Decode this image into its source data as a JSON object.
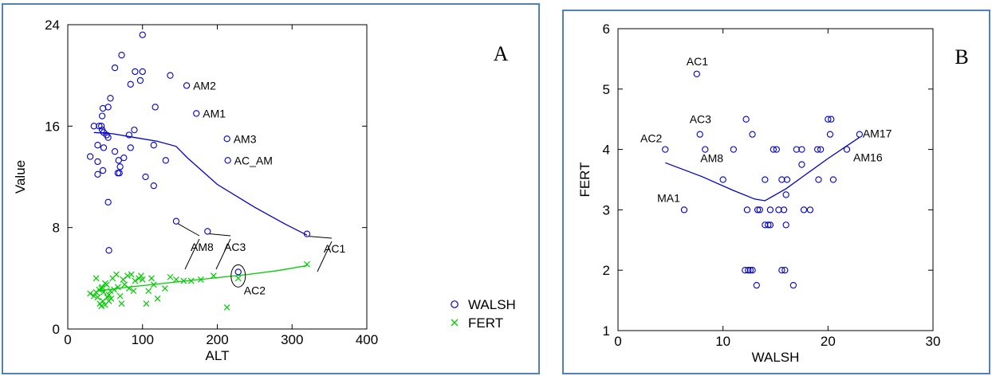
{
  "chart_data": [
    {
      "type": "scatter",
      "panel_letter": "A",
      "xlabel": "ALT",
      "ylabel": "Value",
      "xlim": [
        0,
        400
      ],
      "ylim": [
        0,
        24
      ],
      "xticks": [
        0,
        100,
        200,
        300,
        400
      ],
      "yticks": [
        0,
        8,
        16,
        24
      ],
      "grid": false,
      "legend_position": "lower-right outside",
      "series": [
        {
          "name": "WALSH",
          "marker": "circle",
          "color": "#0000cc",
          "points": [
            [
              100,
              23.2
            ],
            [
              72,
              21.6
            ],
            [
              63,
              20.6
            ],
            [
              90,
              20.3
            ],
            [
              100,
              20.3
            ],
            [
              137,
              20
            ],
            [
              84,
              19.3
            ],
            [
              97,
              19.6
            ],
            [
              159,
              19.2
            ],
            [
              54,
              17.5
            ],
            [
              47,
              17.4
            ],
            [
              117,
              17.5
            ],
            [
              172,
              17
            ],
            [
              57,
              18.2
            ],
            [
              46,
              16.8
            ],
            [
              35,
              16
            ],
            [
              42,
              16
            ],
            [
              45,
              16
            ],
            [
              46,
              15.7
            ],
            [
              48,
              15.5
            ],
            [
              52,
              15.3
            ],
            [
              54,
              15.1
            ],
            [
              89,
              15.7
            ],
            [
              82,
              15.3
            ],
            [
              213,
              15
            ],
            [
              40,
              14.5
            ],
            [
              48,
              14.3
            ],
            [
              63,
              14
            ],
            [
              84,
              14.3
            ],
            [
              75,
              13.5
            ],
            [
              115,
              14.5
            ],
            [
              68,
              13.3
            ],
            [
              30,
              13.6
            ],
            [
              40,
              13.2
            ],
            [
              70,
              12.8
            ],
            [
              214,
              13.3
            ],
            [
              47,
              12.5
            ],
            [
              40,
              12.2
            ],
            [
              67,
              12.3
            ],
            [
              69,
              12.3
            ],
            [
              131,
              13.3
            ],
            [
              104,
              12
            ],
            [
              115,
              11.3
            ],
            [
              54,
              10
            ],
            [
              55,
              6.2
            ],
            [
              145,
              8.5
            ],
            [
              187,
              7.7
            ],
            [
              228,
              4.5
            ],
            [
              320,
              7.5
            ]
          ],
          "labels": [
            {
              "text": "AM2",
              "x": 159,
              "y": 19.2
            },
            {
              "text": "AM1",
              "x": 172,
              "y": 17
            },
            {
              "text": "AM3",
              "x": 213,
              "y": 15
            },
            {
              "text": "AC_AM",
              "x": 214,
              "y": 13.3
            },
            {
              "text": "AM8",
              "x": 145,
              "y": 8.5
            },
            {
              "text": "AC3",
              "x": 187,
              "y": 7.7
            },
            {
              "text": "AC1",
              "x": 320,
              "y": 7.5
            },
            {
              "text": "AC2",
              "x": 228,
              "y": 4.5
            }
          ]
        },
        {
          "name": "FERT",
          "marker": "x",
          "color": "#00cc00",
          "points": [
            [
              30,
              2.8
            ],
            [
              35,
              2.6
            ],
            [
              38,
              2.9
            ],
            [
              40,
              2.5
            ],
            [
              42,
              3.1
            ],
            [
              43,
              2
            ],
            [
              45,
              1.8
            ],
            [
              46,
              3.3
            ],
            [
              47,
              2.2
            ],
            [
              48,
              2.9
            ],
            [
              50,
              1.9
            ],
            [
              52,
              3.5
            ],
            [
              53,
              2.5
            ],
            [
              55,
              2.7
            ],
            [
              57,
              3.0
            ],
            [
              58,
              2.4
            ],
            [
              60,
              4
            ],
            [
              62,
              3.1
            ],
            [
              65,
              4.3
            ],
            [
              67,
              3.3
            ],
            [
              70,
              2.6
            ],
            [
              72,
              2
            ],
            [
              74,
              3.9
            ],
            [
              76,
              3.5
            ],
            [
              80,
              4.2
            ],
            [
              82,
              3.2
            ],
            [
              85,
              4.3
            ],
            [
              88,
              3
            ],
            [
              90,
              3.8
            ],
            [
              95,
              4
            ],
            [
              98,
              4.2
            ],
            [
              100,
              3.9
            ],
            [
              105,
              2
            ],
            [
              108,
              3
            ],
            [
              112,
              4
            ],
            [
              115,
              3.5
            ],
            [
              120,
              2.4
            ],
            [
              130,
              3.2
            ],
            [
              137,
              4.1
            ],
            [
              145,
              3.9
            ],
            [
              155,
              3.8
            ],
            [
              165,
              3.8
            ],
            [
              178,
              3.9
            ],
            [
              195,
              4.2
            ],
            [
              213,
              1.7
            ],
            [
              228,
              4
            ],
            [
              320,
              5.1
            ],
            [
              38,
              4
            ],
            [
              45,
              3.2
            ],
            [
              50,
              3.6
            ],
            [
              55,
              2.2
            ]
          ]
        }
      ],
      "fits": [
        {
          "series": "WALSH",
          "color": "#0000cc",
          "x": [
            35,
            60,
            90,
            120,
            145,
            160,
            200,
            250,
            290,
            320
          ],
          "y": [
            15.5,
            15.4,
            15.1,
            14.8,
            14.4,
            13.5,
            11.4,
            9.6,
            8.3,
            7.4
          ]
        },
        {
          "series": "FERT",
          "color": "#00cc00",
          "x": [
            40,
            80,
            120,
            160,
            200,
            240,
            280,
            320
          ],
          "y": [
            3.0,
            3.3,
            3.55,
            3.8,
            4.05,
            4.3,
            4.6,
            5.0
          ]
        }
      ]
    },
    {
      "type": "scatter",
      "panel_letter": "B",
      "xlabel": "WALSH",
      "ylabel": "FERT",
      "xlim": [
        0,
        30
      ],
      "ylim": [
        1,
        6
      ],
      "xticks": [
        0,
        10,
        20,
        30
      ],
      "yticks": [
        1,
        2,
        3,
        4,
        5,
        6
      ],
      "grid": false,
      "series": [
        {
          "name": "",
          "marker": "circle",
          "color": "#0000cc",
          "points": [
            [
              7.5,
              5.25
            ],
            [
              12.2,
              4.5
            ],
            [
              20,
              4.5
            ],
            [
              20.3,
              4.5
            ],
            [
              7.8,
              4.25
            ],
            [
              12.8,
              4.25
            ],
            [
              20.2,
              4.25
            ],
            [
              23,
              4.25
            ],
            [
              4.5,
              4
            ],
            [
              8.3,
              4
            ],
            [
              11,
              4
            ],
            [
              14.8,
              4
            ],
            [
              15.1,
              4
            ],
            [
              17,
              4
            ],
            [
              17.5,
              4
            ],
            [
              19,
              4
            ],
            [
              19.3,
              4
            ],
            [
              21.8,
              4
            ],
            [
              10,
              3.5
            ],
            [
              14,
              3.5
            ],
            [
              15.6,
              3.5
            ],
            [
              16.1,
              3.5
            ],
            [
              19.1,
              3.5
            ],
            [
              20.5,
              3.5
            ],
            [
              17.5,
              3.75
            ],
            [
              16,
              3.25
            ],
            [
              6.3,
              3
            ],
            [
              12.3,
              3
            ],
            [
              13.3,
              3
            ],
            [
              13.5,
              3
            ],
            [
              14.5,
              3
            ],
            [
              15.3,
              3
            ],
            [
              15.8,
              3
            ],
            [
              17.7,
              3
            ],
            [
              18.3,
              3
            ],
            [
              14,
              2.75
            ],
            [
              14.3,
              2.75
            ],
            [
              14.5,
              2.75
            ],
            [
              16,
              2.75
            ],
            [
              12.1,
              2
            ],
            [
              12.4,
              2
            ],
            [
              12.6,
              2
            ],
            [
              12.8,
              2
            ],
            [
              15.6,
              2
            ],
            [
              15.9,
              2
            ],
            [
              13.2,
              1.75
            ],
            [
              16.7,
              1.75
            ]
          ],
          "labels": [
            {
              "text": "AC1",
              "x": 7.5,
              "y": 5.25
            },
            {
              "text": "AC3",
              "x": 7.8,
              "y": 4.25
            },
            {
              "text": "AC2",
              "x": 4.5,
              "y": 4
            },
            {
              "text": "AM8",
              "x": 8.3,
              "y": 4
            },
            {
              "text": "MA1",
              "x": 6.3,
              "y": 3
            },
            {
              "text": "AM17",
              "x": 23,
              "y": 4.25
            },
            {
              "text": "AM16",
              "x": 21.8,
              "y": 4
            }
          ]
        }
      ],
      "fits": [
        {
          "color": "#0000cc",
          "x": [
            4.5,
            8,
            11,
            13,
            14,
            16,
            18,
            20,
            23
          ],
          "y": [
            3.78,
            3.55,
            3.32,
            3.18,
            3.15,
            3.35,
            3.6,
            3.85,
            4.2
          ]
        }
      ]
    }
  ]
}
